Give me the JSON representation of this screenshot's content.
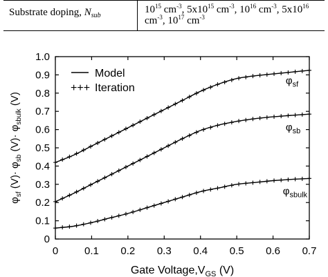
{
  "table_row": {
    "label": "Substrate doping, ",
    "label_symbol": "N",
    "label_symbol_sub": "sub",
    "value_parts": [
      {
        "t": "10"
      },
      {
        "sup": "15"
      },
      {
        "t": " cm"
      },
      {
        "sup": "-3"
      },
      {
        "t": ", 5x10"
      },
      {
        "sup": "15"
      },
      {
        "t": " cm"
      },
      {
        "sup": "-3"
      },
      {
        "t": ", 10"
      },
      {
        "sup": "16"
      },
      {
        "t": " cm"
      },
      {
        "sup": "-3"
      },
      {
        "t": ", 5x10"
      },
      {
        "sup": "16"
      },
      {
        "t": " cm"
      },
      {
        "sup": "-3"
      },
      {
        "t": ", 10"
      },
      {
        "sup": "17"
      },
      {
        "t": " cm"
      },
      {
        "sup": "-3"
      }
    ]
  },
  "chart_data": {
    "type": "line",
    "xlabel": "Gate Voltage,V",
    "xlabel_sub": "GS",
    "xlabel_unit": " (V)",
    "ylabel_parts": [
      {
        "t": "φ"
      },
      {
        "sub": "sf"
      },
      {
        "t": " (V)· φ"
      },
      {
        "sub": "sb"
      },
      {
        "t": " (V)· φ"
      },
      {
        "sub": "sbulk"
      },
      {
        "t": " (V)"
      }
    ],
    "xlim": [
      0,
      0.7
    ],
    "ylim": [
      0,
      1.0
    ],
    "xticks": [
      "0",
      "0.1",
      "0.2",
      "0.3",
      "0.4",
      "0.5",
      "0.6",
      "0.7"
    ],
    "yticks": [
      "0",
      "0.1",
      "0.2",
      "0.3",
      "0.4",
      "0.5",
      "0.6",
      "0.7",
      "0.8",
      "0.9",
      "1.0"
    ],
    "xtick_values": [
      0,
      0.1,
      0.2,
      0.3,
      0.4,
      0.5,
      0.6,
      0.7
    ],
    "ytick_values": [
      0,
      0.1,
      0.2,
      0.3,
      0.4,
      0.5,
      0.6,
      0.7,
      0.8,
      0.9,
      1.0
    ],
    "legend": {
      "position": "top-left",
      "entries": [
        {
          "symbol": "—",
          "label": "Model"
        },
        {
          "symbol": "+++",
          "label": "Iteration"
        }
      ]
    },
    "curve_labels": [
      {
        "base": "φ",
        "sub": "sf",
        "series": 0
      },
      {
        "base": "φ",
        "sub": "sb",
        "series": 1
      },
      {
        "base": "φ",
        "sub": "sbulk",
        "series": 2
      }
    ],
    "series": [
      {
        "x": [
          0,
          0.05,
          0.1,
          0.15,
          0.2,
          0.25,
          0.3,
          0.35,
          0.4,
          0.45,
          0.5,
          0.55,
          0.6,
          0.65,
          0.7
        ],
        "y": [
          0.42,
          0.46,
          0.51,
          0.56,
          0.61,
          0.66,
          0.71,
          0.76,
          0.81,
          0.85,
          0.88,
          0.895,
          0.905,
          0.915,
          0.925
        ]
      },
      {
        "x": [
          0,
          0.05,
          0.1,
          0.15,
          0.2,
          0.25,
          0.3,
          0.35,
          0.4,
          0.45,
          0.5,
          0.55,
          0.6,
          0.65,
          0.7
        ],
        "y": [
          0.205,
          0.25,
          0.3,
          0.35,
          0.4,
          0.45,
          0.5,
          0.55,
          0.595,
          0.625,
          0.645,
          0.66,
          0.67,
          0.678,
          0.685
        ]
      },
      {
        "x": [
          0,
          0.05,
          0.1,
          0.15,
          0.2,
          0.25,
          0.3,
          0.35,
          0.4,
          0.45,
          0.5,
          0.55,
          0.6,
          0.65,
          0.7
        ],
        "y": [
          0.06,
          0.07,
          0.09,
          0.115,
          0.14,
          0.17,
          0.2,
          0.23,
          0.26,
          0.28,
          0.3,
          0.31,
          0.32,
          0.327,
          0.332
        ]
      }
    ],
    "grid": false
  }
}
